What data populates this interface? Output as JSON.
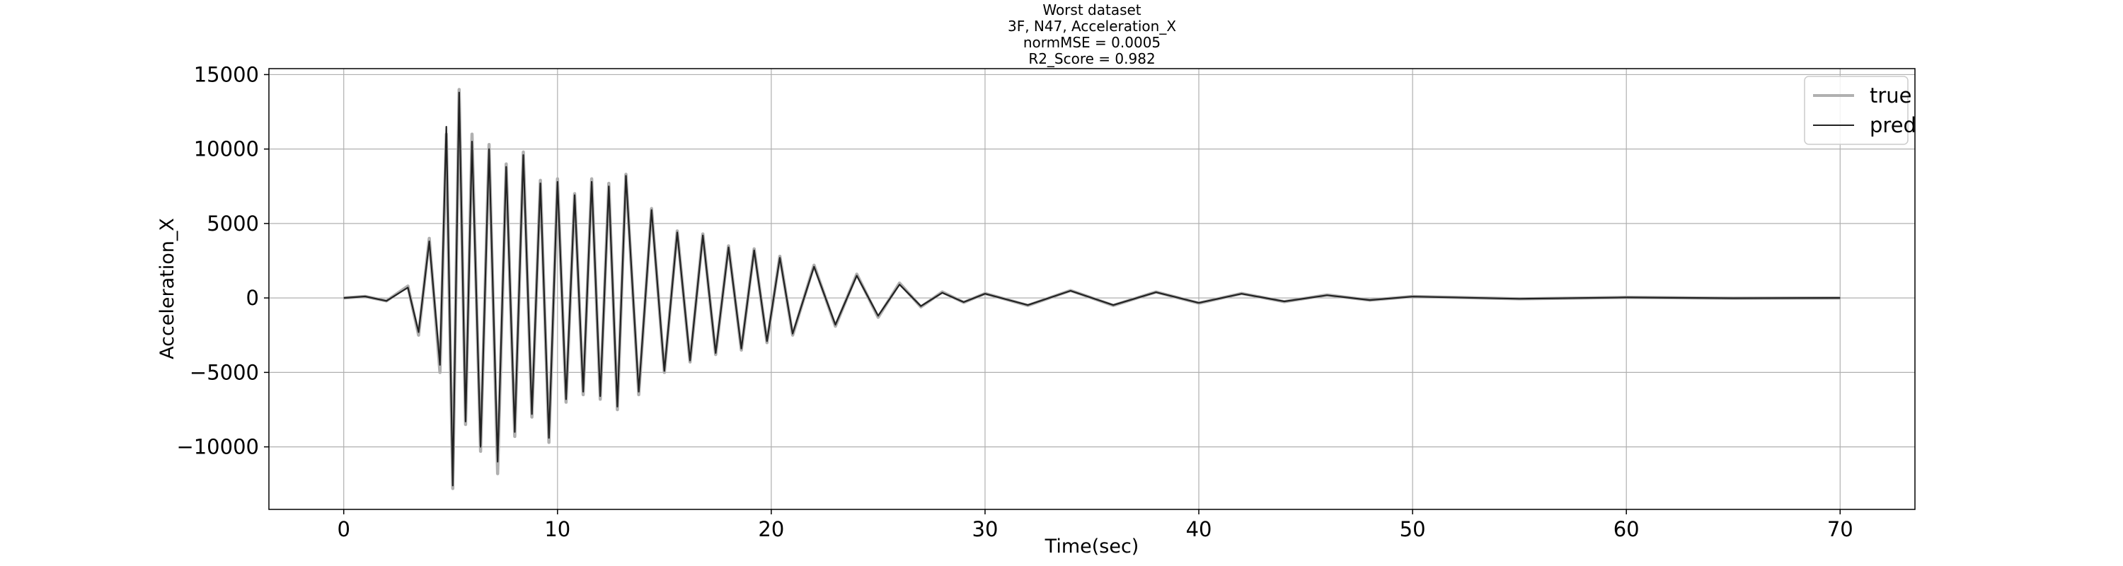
{
  "chart_data": {
    "type": "line",
    "title_lines": [
      "Worst dataset",
      "3F, N47, Acceleration_X",
      "normMSE = 0.0005",
      "R2_Score = 0.982"
    ],
    "xlabel": "Time(sec)",
    "ylabel": "Acceleration_X",
    "xlim": [
      -3.5,
      73.5
    ],
    "ylim": [
      -14200,
      15400
    ],
    "x_ticks": [
      0,
      10,
      20,
      30,
      40,
      50,
      60,
      70
    ],
    "x_tick_labels": [
      "0",
      "10",
      "20",
      "30",
      "40",
      "50",
      "60",
      "70"
    ],
    "y_ticks": [
      -10000,
      -5000,
      0,
      5000,
      10000,
      15000
    ],
    "y_tick_labels": [
      "−10000",
      "−5000",
      "0",
      "5000",
      "10000",
      "15000"
    ],
    "grid": true,
    "legend_position": "top-right",
    "series": [
      {
        "name": "true",
        "color": "#b0b0b0",
        "x": [
          0,
          1,
          2,
          3,
          3.5,
          4,
          4.5,
          4.8,
          5.1,
          5.4,
          5.7,
          6.0,
          6.4,
          6.8,
          7.2,
          7.6,
          8.0,
          8.4,
          8.8,
          9.2,
          9.6,
          10.0,
          10.4,
          10.8,
          11.2,
          11.6,
          12.0,
          12.4,
          12.8,
          13.2,
          13.8,
          14.4,
          15.0,
          15.6,
          16.2,
          16.8,
          17.4,
          18.0,
          18.6,
          19.2,
          19.8,
          20.4,
          21.0,
          22.0,
          23.0,
          24.0,
          25.0,
          26.0,
          27.0,
          28.0,
          29.0,
          30.0,
          32.0,
          34.0,
          36.0,
          38.0,
          40.0,
          42.0,
          44.0,
          46.0,
          48.0,
          50.0,
          55.0,
          60.0,
          65.0,
          70.0
        ],
        "y": [
          0,
          100,
          -200,
          800,
          -2500,
          4000,
          -5000,
          11000,
          -12800,
          14000,
          -8500,
          11000,
          -10300,
          10300,
          -11800,
          9000,
          -9300,
          9800,
          -8000,
          7900,
          -9700,
          8000,
          -7000,
          7000,
          -6500,
          8000,
          -6800,
          7700,
          -7500,
          8300,
          -6500,
          6000,
          -5000,
          4500,
          -4300,
          4300,
          -3800,
          3500,
          -3500,
          3300,
          -3000,
          2800,
          -2500,
          2200,
          -1900,
          1600,
          -1300,
          1000,
          -600,
          400,
          -300,
          300,
          -500,
          500,
          -500,
          400,
          -350,
          300,
          -250,
          200,
          -150,
          100,
          -60,
          40,
          -20,
          0
        ]
      },
      {
        "name": "pred",
        "color": "#222222",
        "x": [
          0,
          1,
          2,
          3,
          3.5,
          4,
          4.5,
          4.8,
          5.1,
          5.4,
          5.7,
          6.0,
          6.4,
          6.8,
          7.2,
          7.6,
          8.0,
          8.4,
          8.8,
          9.2,
          9.6,
          10.0,
          10.4,
          10.8,
          11.2,
          11.6,
          12.0,
          12.4,
          12.8,
          13.2,
          13.8,
          14.4,
          15.0,
          15.6,
          16.2,
          16.8,
          17.4,
          18.0,
          18.6,
          19.2,
          19.8,
          20.4,
          21.0,
          22.0,
          23.0,
          24.0,
          25.0,
          26.0,
          27.0,
          28.0,
          29.0,
          30.0,
          32.0,
          34.0,
          36.0,
          38.0,
          40.0,
          42.0,
          44.0,
          46.0,
          48.0,
          50.0,
          55.0,
          60.0,
          65.0,
          70.0
        ],
        "y": [
          0,
          100,
          -200,
          700,
          -2300,
          3800,
          -4500,
          11500,
          -12600,
          13800,
          -8300,
          10500,
          -10000,
          10000,
          -11000,
          8800,
          -9000,
          9600,
          -7800,
          7700,
          -9400,
          7800,
          -6800,
          6900,
          -6300,
          7800,
          -6600,
          7500,
          -7300,
          8200,
          -6300,
          5900,
          -4900,
          4400,
          -4200,
          4200,
          -3700,
          3400,
          -3400,
          3200,
          -2900,
          2700,
          -2400,
          2100,
          -1800,
          1500,
          -1200,
          900,
          -550,
          350,
          -280,
          280,
          -480,
          480,
          -480,
          380,
          -330,
          280,
          -230,
          180,
          -140,
          90,
          -55,
          35,
          -18,
          0
        ]
      }
    ]
  }
}
